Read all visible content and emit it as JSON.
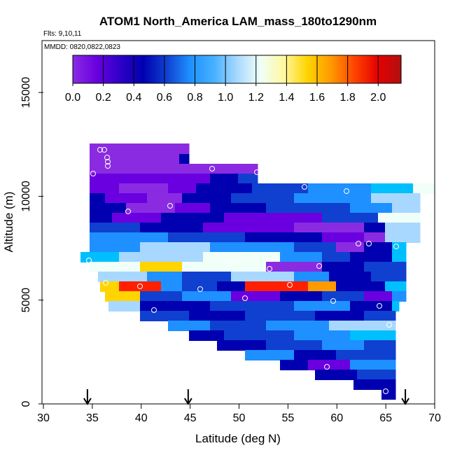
{
  "chart_data": {
    "type": "heatmap",
    "title": "ATOM1 North_America LAM_mass_180to1290nm",
    "subtitle_flights": "Flts: 9,10,11",
    "subtitle_dates": "MMDD: 0820,0822,0823",
    "xlabel": "Latitude (deg N)",
    "ylabel": "Altitude (m)",
    "xlim": [
      30,
      70
    ],
    "ylim": [
      0,
      17500
    ],
    "x_ticks": [
      "30",
      "35",
      "40",
      "45",
      "50",
      "55",
      "60",
      "65",
      "70"
    ],
    "y_ticks": [
      "0",
      "5000",
      "10000",
      "15000"
    ],
    "colorbar": {
      "range": [
        0,
        2.15
      ],
      "ticks": [
        "0.0",
        "0.2",
        "0.4",
        "0.6",
        "0.8",
        "1.0",
        "1.2",
        "1.4",
        "1.6",
        "1.8",
        "2.0"
      ],
      "colors": [
        "#8a2be2",
        "#6a00e0",
        "#3000c8",
        "#0000b0",
        "#1040d0",
        "#1e90ff",
        "#45b0ff",
        "#a8d8ff",
        "#f0fff8",
        "#fff8a0",
        "#ffd400",
        "#ff9a00",
        "#ff4500",
        "#e60000",
        "#b01010"
      ]
    },
    "grid": false,
    "arrows_latitude": [
      34.5,
      44.8,
      67
    ]
  },
  "colors": {
    "purple": "#8a2be2",
    "violet": "#6a00e0",
    "darkblue": "#0000b0",
    "blue": "#1040d0",
    "sky": "#1e90ff",
    "cyan": "#00bfff",
    "lightblue": "#a8d8ff",
    "pale": "#f0fff8",
    "yellow": "#ffd400",
    "orange": "#ff9a00",
    "red": "#ff2000"
  }
}
